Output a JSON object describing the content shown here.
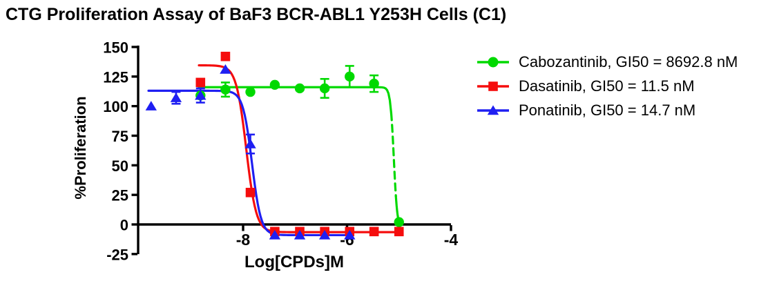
{
  "chart_data": {
    "type": "line",
    "title": "CTG Proliferation Assay of BaF3 BCR-ABL1 Y253H Cells (C1)",
    "xlabel": "Log[CPDs]M",
    "ylabel": "%Proliferation",
    "xlim": [
      -10,
      -3.93
    ],
    "ylim": [
      -25,
      150
    ],
    "xticks": [
      -8,
      -6,
      -4
    ],
    "yticks": [
      150,
      125,
      100,
      75,
      50,
      25,
      0,
      -25
    ],
    "grid": false,
    "legend_position": "right",
    "axis_color": "#000000",
    "background_color": "#ffffff",
    "series": [
      {
        "name": "Cabozantinib",
        "label": "Cabozantinib, GI50 = 8692.8 nM",
        "gi50": "8692.8 nM",
        "color": "#00d900",
        "marker": "circle",
        "x": [
          -8.82,
          -8.34,
          -7.86,
          -7.39,
          -6.91,
          -6.43,
          -5.95,
          -5.48,
          -5.0
        ],
        "y": [
          109,
          114,
          112,
          118,
          115,
          115,
          125,
          119,
          2
        ],
        "yerr": [
          0,
          6,
          0,
          0,
          0,
          8,
          9,
          7,
          0
        ],
        "fit": {
          "top": 116,
          "bottom": -4,
          "log_gi50": -5.1,
          "hill": 13,
          "x_start": -8.85,
          "x_end": -5.0,
          "dash_from": -5.15,
          "dash_to": -5.06
        }
      },
      {
        "name": "Dasatinib",
        "label": "Dasatinib, GI50 = 11.5 nM",
        "gi50": "11.5 nM",
        "color": "#f50d0d",
        "marker": "square",
        "x": [
          -8.82,
          -8.34,
          -7.86,
          -7.39,
          -6.91,
          -6.43,
          -5.95,
          -5.48,
          -5.0
        ],
        "y": [
          120,
          142,
          27,
          -6,
          -6,
          -6,
          -6,
          -6,
          -6
        ],
        "yerr": [
          0,
          0,
          0,
          0,
          0,
          0,
          0,
          0,
          0
        ],
        "fit": {
          "top": 134.5,
          "bottom": -6.5,
          "log_gi50": -7.94,
          "hill": 4.5,
          "x_start": -8.85,
          "x_end": -5.0
        }
      },
      {
        "name": "Ponatinib",
        "label": "Ponatinib, GI50 = 14.7 nM",
        "gi50": "14.7 nM",
        "color": "#1f1ff2",
        "marker": "triangle",
        "x": [
          -9.77,
          -9.29,
          -8.82,
          -8.34,
          -7.86,
          -7.39,
          -6.91,
          -6.43,
          -5.95
        ],
        "y": [
          100,
          107,
          109,
          131,
          68,
          -9,
          -9,
          -9,
          -9
        ],
        "yerr": [
          0,
          5,
          6,
          0,
          8,
          0,
          0,
          0,
          0
        ],
        "fit": {
          "top": 113,
          "bottom": -9,
          "log_gi50": -7.83,
          "hill": 5,
          "x_start": -9.82,
          "x_end": -5.95
        }
      }
    ]
  }
}
